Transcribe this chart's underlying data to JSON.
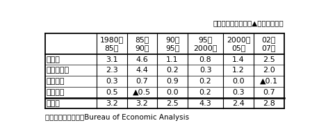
{
  "title_note": "（単位は％／年。　▲はマイナス）",
  "col_headers": [
    "1980～\n85年",
    "85～\n90年",
    "90～\n95年",
    "95～\n2000年",
    "2000～\n05年",
    "02～\n07年"
  ],
  "rows": [
    {
      "label": "日　本",
      "values": [
        "3.1",
        "4.6",
        "1.1",
        "0.8",
        "1.4",
        "2.5"
      ]
    },
    {
      "label": "　うち民需",
      "values": [
        "2.3",
        "4.4",
        "0.2",
        "0.3",
        "1.2",
        "2.0"
      ]
    },
    {
      "label": "　公　需",
      "values": [
        "0.3",
        "0.7",
        "0.9",
        "0.2",
        "0.0",
        "▲0.1"
      ]
    },
    {
      "label": "　純輸出",
      "values": [
        "0.5",
        "▲0.5",
        "0.0",
        "0.2",
        "0.3",
        "0.7"
      ]
    },
    {
      "label": "米　国",
      "values": [
        "3.2",
        "3.2",
        "2.5",
        "4.3",
        "2.4",
        "2.8"
      ]
    }
  ],
  "footer": "（出所）内閣府、米Bureau of Economic Analysis",
  "background_color": "#ffffff",
  "font_size": 8.0,
  "header_font_size": 7.8,
  "note_font_size": 7.5,
  "footer_font_size": 7.5
}
